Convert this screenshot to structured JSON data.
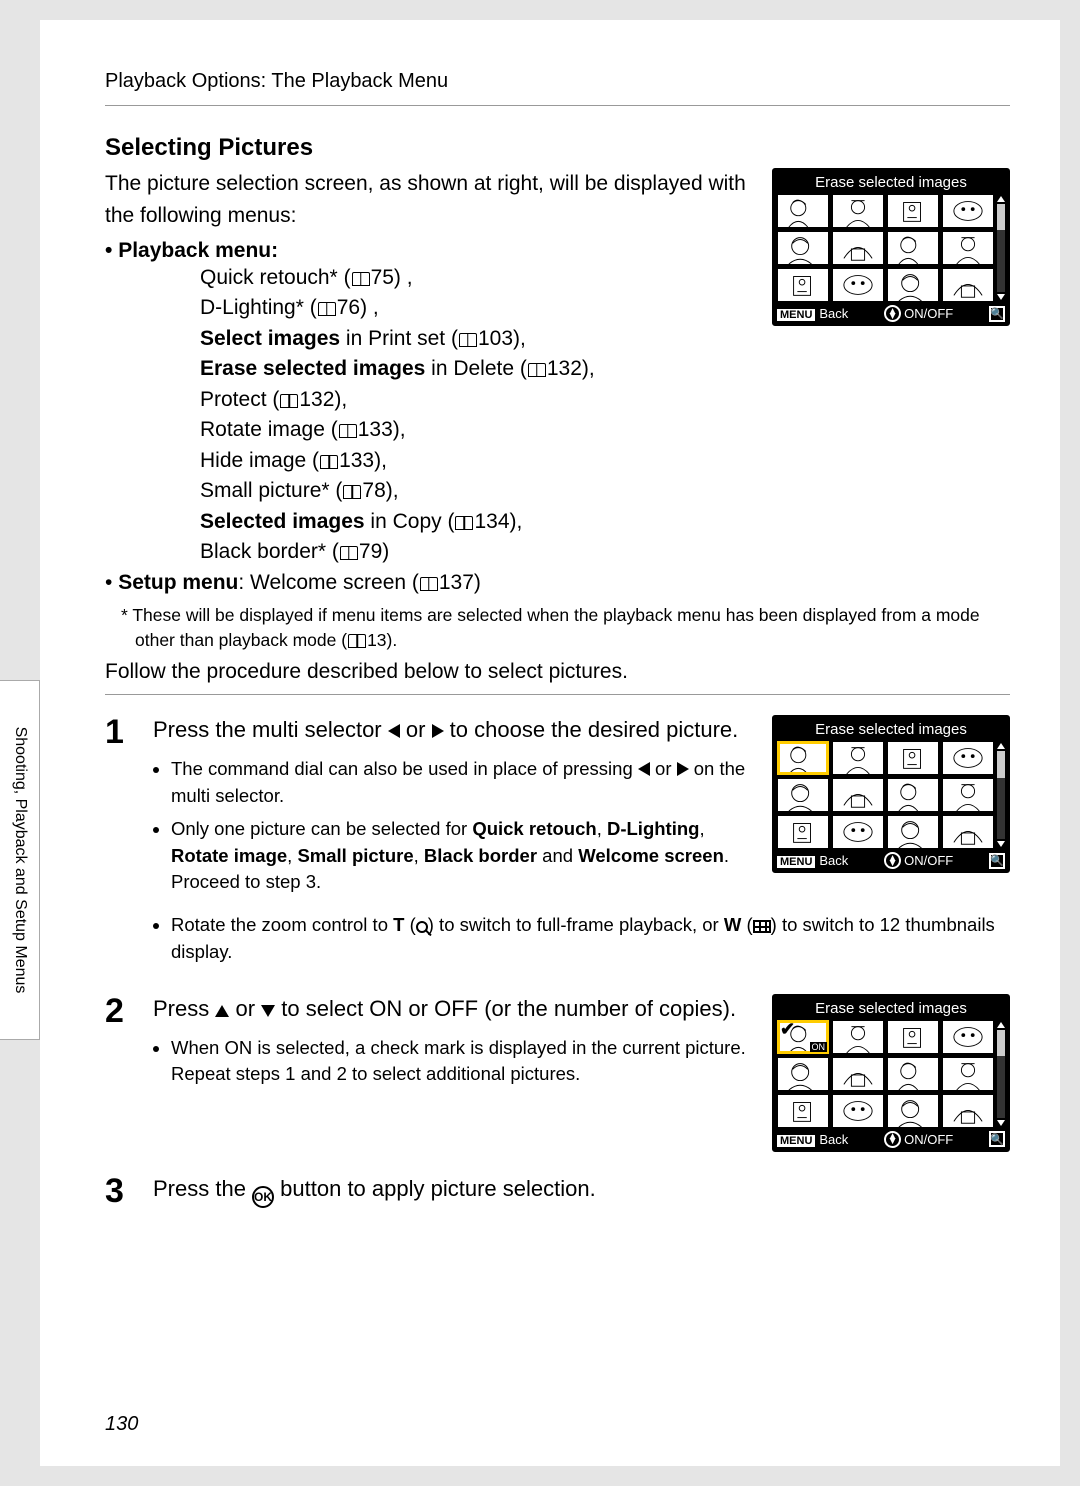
{
  "breadcrumb": "Playback Options: The Playback Menu",
  "section_title": "Selecting Pictures",
  "intro": "The picture selection screen, as shown at right, will be displayed with the following menus:",
  "playback_menu_label": "Playback menu",
  "menu_items": {
    "quick_retouch": "Quick retouch* (",
    "quick_retouch_page": "75) ,",
    "dlighting": "D-Lighting* (",
    "dlighting_page": "76) ,",
    "select_images_b": "Select images",
    "select_images_r": " in Print set (",
    "select_images_page": "103),",
    "erase_b": "Erase selected images",
    "erase_r": " in Delete (",
    "erase_page": "132),",
    "protect": "Protect (",
    "protect_page": "132),",
    "rotate": "Rotate image (",
    "rotate_page": "133),",
    "hide": "Hide image (",
    "hide_page": "133),",
    "small": "Small picture* (",
    "small_page": "78),",
    "selected_b": "Selected images",
    "selected_r": " in Copy (",
    "selected_page": "134),",
    "border": "Black border* (",
    "border_page": "79)"
  },
  "setup_menu_b": "Setup menu",
  "setup_menu_r": ": Welcome screen (",
  "setup_menu_page": "137)",
  "footnote": "*   These will be displayed if menu items are selected when the playback menu has been displayed from a mode other than playback mode (",
  "footnote_page": "13).",
  "follow": "Follow the procedure described below to select pictures.",
  "steps": {
    "s1": {
      "num": "1",
      "head_a": "Press the multi selector ",
      "head_b": " or ",
      "head_c": " to choose the desired picture.",
      "li1_a": "The command dial can also be used in place of pressing ",
      "li1_b": " or ",
      "li1_c": " on the multi selector.",
      "li2_a": "Only one picture can be selected for ",
      "li2_b1": "Quick retouch",
      "li2_b2": "D-Lighting",
      "li2_b3": "Rotate image",
      "li2_b4": "Small picture",
      "li2_b5": "Black border",
      "li2_b6": "Welcome screen",
      "li2_c": ". Proceed to step 3.",
      "li3_a": "Rotate the zoom control to ",
      "li3_b": "T",
      "li3_c": " (",
      "li3_d": ") to switch to full-frame playback, or ",
      "li3_e": "W",
      "li3_f": " (",
      "li3_g": ") to switch to 12 thumbnails display."
    },
    "s2": {
      "num": "2",
      "head_a": "Press ",
      "head_b": " or ",
      "head_c": " to select ON or OFF (or the number of copies).",
      "li1": "When ON is selected, a check mark is displayed in the current picture. Repeat steps 1 and 2 to select additional pictures."
    },
    "s3": {
      "num": "3",
      "head_a": "Press the ",
      "head_b": " button to apply picture selection."
    }
  },
  "camshot": {
    "title": "Erase selected images",
    "menu_label": "MENU",
    "back": "Back",
    "onoff": "ON/OFF"
  },
  "sidetab": "Shooting, Playback and Setup Menus",
  "page_number": "130",
  "ok": "OK"
}
